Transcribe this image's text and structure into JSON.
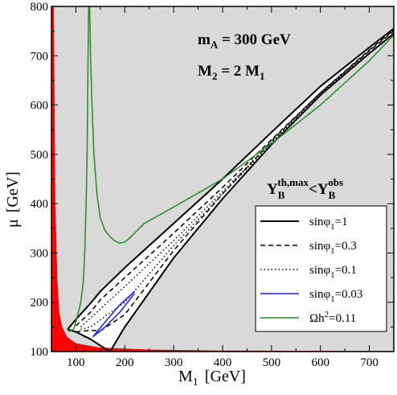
{
  "chart_data": {
    "type": "line",
    "xlabel": "M",
    "xlabel_sub": "1",
    "xlabel_unit": "[GeV]",
    "ylabel": "μ",
    "ylabel_unit": "[GeV]",
    "xlim": [
      50,
      750
    ],
    "ylim": [
      100,
      800
    ],
    "x_ticks": [
      100,
      200,
      300,
      400,
      500,
      600,
      700
    ],
    "y_ticks": [
      100,
      200,
      300,
      400,
      500,
      600,
      700,
      800
    ],
    "x_tick_labels": [
      "100",
      "200",
      "300",
      "400",
      "500",
      "600",
      "700"
    ],
    "y_tick_labels": [
      "100",
      "200",
      "300",
      "400",
      "500",
      "600",
      "700",
      "800"
    ],
    "grid": false,
    "legend_position": "bottom-right",
    "annotations": {
      "mA": {
        "main": "m",
        "sub": "A",
        "rest": " = 300 GeV"
      },
      "M2": {
        "main": "M",
        "sub": "2",
        "mid": " = 2 M",
        "sub2": "1"
      },
      "Y": {
        "a": "Y",
        "a_sub": "B",
        "a_sup": "th,max",
        "lt": "<",
        "b": "Y",
        "b_sub": "B",
        "b_sup": "obs"
      }
    },
    "colors": {
      "background_excluded": "#d9d9d9",
      "allowed_region": "#ffffff",
      "red_region": "#ff0000",
      "green": "#228b22",
      "blue": "#1a1aff",
      "black": "#000000"
    },
    "series": [
      {
        "name": "sinφ1=1",
        "legend_label": "sinφ ",
        "legend_sub": "1",
        "legend_rest": "=1",
        "style": "solid",
        "color": "#000000",
        "upper": [
          [
            83,
            145
          ],
          [
            100,
            165
          ],
          [
            130,
            198
          ],
          [
            150,
            222
          ],
          [
            200,
            270
          ],
          [
            300,
            360
          ],
          [
            400,
            450
          ],
          [
            500,
            545
          ],
          [
            600,
            638
          ],
          [
            700,
            717
          ],
          [
            750,
            755
          ]
        ],
        "lower": [
          [
            83,
            145
          ],
          [
            100,
            140
          ],
          [
            130,
            125
          ],
          [
            150,
            112
          ],
          [
            170,
            100
          ],
          [
            200,
            150
          ],
          [
            300,
            290
          ],
          [
            400,
            410
          ],
          [
            500,
            520
          ],
          [
            600,
            620
          ],
          [
            700,
            705
          ],
          [
            750,
            745
          ]
        ]
      },
      {
        "name": "sinφ1=0.3",
        "legend_label": "sinφ ",
        "legend_sub": "1",
        "legend_rest": "=0.3",
        "style": "dashed",
        "color": "#000000",
        "upper": [
          [
            100,
            152
          ],
          [
            130,
            180
          ],
          [
            150,
            205
          ],
          [
            200,
            250
          ],
          [
            300,
            340
          ],
          [
            400,
            433
          ],
          [
            500,
            530
          ],
          [
            600,
            625
          ],
          [
            700,
            712
          ],
          [
            750,
            752
          ]
        ],
        "lower": [
          [
            100,
            140
          ],
          [
            130,
            143
          ],
          [
            150,
            142
          ],
          [
            200,
            175
          ],
          [
            300,
            305
          ],
          [
            400,
            420
          ],
          [
            500,
            527
          ],
          [
            600,
            625
          ],
          [
            700,
            710
          ],
          [
            750,
            750
          ]
        ]
      },
      {
        "name": "sinφ1=0.1",
        "legend_label": "sinφ ",
        "legend_sub": "1",
        "legend_rest": "=0.1",
        "style": "dotted",
        "color": "#000000",
        "upper": [
          [
            110,
            150
          ],
          [
            130,
            168
          ],
          [
            200,
            232
          ],
          [
            300,
            325
          ],
          [
            400,
            425
          ],
          [
            500,
            525
          ],
          [
            600,
            622
          ],
          [
            700,
            712
          ]
        ],
        "lower": [
          [
            110,
            145
          ],
          [
            130,
            150
          ],
          [
            200,
            200
          ],
          [
            300,
            315
          ],
          [
            400,
            420
          ],
          [
            500,
            522
          ],
          [
            600,
            620
          ],
          [
            700,
            710
          ]
        ]
      },
      {
        "name": "sinφ1=0.03",
        "legend_label": "sinφ ",
        "legend_sub": "1",
        "legend_rest": "=0.03",
        "style": "solid",
        "color": "#1a1aff",
        "upper": [
          [
            135,
            130
          ],
          [
            160,
            160
          ],
          [
            190,
            195
          ],
          [
            220,
            222
          ]
        ],
        "lower": [
          [
            135,
            130
          ],
          [
            160,
            150
          ],
          [
            190,
            180
          ],
          [
            220,
            218
          ]
        ]
      },
      {
        "name": "Ωh2=0.11",
        "legend_label": "Ωh",
        "legend_sup": "2",
        "legend_rest": "=0.11",
        "style": "solid",
        "color": "#228b22",
        "points": [
          [
            85,
            140
          ],
          [
            95,
            145
          ],
          [
            100,
            160
          ],
          [
            105,
            180
          ],
          [
            110,
            200
          ],
          [
            115,
            240
          ],
          [
            118,
            300
          ],
          [
            121,
            400
          ],
          [
            123,
            500
          ],
          [
            124,
            600
          ],
          [
            125,
            700
          ],
          [
            126,
            800
          ],
          [
            128,
            800
          ],
          [
            130,
            700
          ],
          [
            133,
            600
          ],
          [
            137,
            500
          ],
          [
            143,
            420
          ],
          [
            150,
            370
          ],
          [
            160,
            345
          ],
          [
            170,
            333
          ],
          [
            180,
            324
          ],
          [
            190,
            320
          ],
          [
            200,
            322
          ],
          [
            210,
            330
          ],
          [
            225,
            345
          ],
          [
            240,
            360
          ],
          [
            300,
            393
          ],
          [
            400,
            450
          ],
          [
            500,
            522
          ],
          [
            600,
            600
          ],
          [
            700,
            690
          ],
          [
            750,
            742
          ]
        ]
      },
      {
        "name": "red excluded region",
        "style": "fill",
        "color": "#ff0000",
        "points": [
          [
            50,
            800
          ],
          [
            55,
            800
          ],
          [
            58,
            400
          ],
          [
            62,
            250
          ],
          [
            66,
            180
          ],
          [
            72,
            150
          ],
          [
            82,
            130
          ],
          [
            100,
            117
          ],
          [
            150,
            108
          ],
          [
            250,
            104
          ],
          [
            400,
            102
          ],
          [
            750,
            101
          ],
          [
            750,
            100
          ],
          [
            50,
            100
          ]
        ]
      }
    ]
  }
}
